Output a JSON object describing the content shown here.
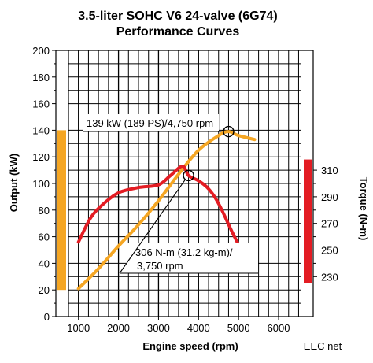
{
  "chart_data": {
    "type": "line",
    "title": "3.5-liter SOHC V6 24-valve (6G74)",
    "subtitle": "Performance Curves",
    "xlabel": "Engine speed (rpm)",
    "ylabel_left": "Output (kW)",
    "ylabel_right": "Torque (N-m)",
    "note": "EEC net",
    "xlim": [
      750,
      6550
    ],
    "ylim_left": [
      0,
      200
    ],
    "ylim_right": [
      200,
      400
    ],
    "grid": true,
    "x_ticks": [
      1000,
      2000,
      3000,
      4000,
      5000,
      6000
    ],
    "y_ticks_left": [
      0,
      20,
      40,
      60,
      80,
      100,
      120,
      140,
      160,
      180,
      200
    ],
    "y_ticks_right": [
      230,
      250,
      270,
      290,
      310
    ],
    "left_band": {
      "from": 20,
      "to": 140,
      "color": "#f5a623"
    },
    "right_band": {
      "from": 225,
      "to": 318,
      "color": "#e31c23"
    },
    "series": [
      {
        "name": "Output",
        "axis": "left",
        "color": "#f5a623",
        "x": [
          1000,
          1500,
          2000,
          2500,
          3000,
          3500,
          4000,
          4500,
          4750,
          5000,
          5400
        ],
        "y": [
          21,
          36,
          53,
          69,
          87,
          107,
          125,
          136,
          139,
          136,
          133
        ]
      },
      {
        "name": "Torque",
        "axis": "right",
        "color": "#e31c23",
        "x": [
          1000,
          1300,
          1600,
          2000,
          2500,
          3000,
          3300,
          3600,
          3750,
          4000,
          4250,
          4500,
          4800,
          5000,
          5200,
          5400
        ],
        "y": [
          256,
          274,
          284,
          293,
          297,
          299,
          306,
          313,
          306,
          302,
          296,
          285,
          266,
          254,
          244,
          236
        ]
      }
    ],
    "annotations": [
      {
        "text": "139 kW (189 PS)/4,750 rpm",
        "x": 4750,
        "y": 139,
        "axis": "left"
      },
      {
        "text": "306 N-m (31.2 kg-m)/",
        "text2": "3,750 rpm",
        "x": 3750,
        "y": 306,
        "axis": "right"
      }
    ]
  }
}
